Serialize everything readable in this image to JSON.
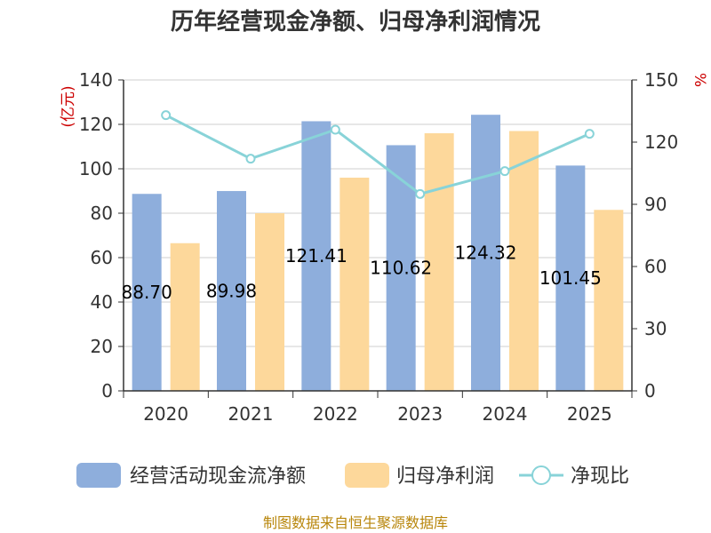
{
  "chart_data": {
    "type": "bar",
    "title": "历年经营现金净额、归母净利润情况",
    "categories": [
      "2020",
      "2021",
      "2022",
      "2023",
      "2024",
      "2025"
    ],
    "series": [
      {
        "name": "经营活动现金流净额",
        "axis": "left",
        "kind": "bar",
        "color": "#8eaedc",
        "values": [
          88.7,
          89.98,
          121.41,
          110.62,
          124.32,
          101.45
        ],
        "labels": [
          "88.70",
          "89.98",
          "121.41",
          "110.62",
          "124.32",
          "101.45"
        ]
      },
      {
        "name": "归母净利润",
        "axis": "left",
        "kind": "bar",
        "color": "#fdd89b",
        "values": [
          66.5,
          80.0,
          96.0,
          116.0,
          117.0,
          81.5
        ]
      },
      {
        "name": "净现比",
        "axis": "right",
        "kind": "line",
        "color": "#88d3d8",
        "values": [
          133,
          112,
          126,
          95,
          106,
          124
        ]
      }
    ],
    "left_axis": {
      "label": "(亿元)",
      "ylim": [
        0,
        140
      ],
      "ticks": [
        0,
        20,
        40,
        60,
        80,
        100,
        120,
        140
      ]
    },
    "right_axis": {
      "label": "%",
      "ylim": [
        0,
        150
      ],
      "ticks": [
        0,
        30,
        60,
        90,
        120,
        150
      ]
    },
    "grid": true,
    "legend_position": "bottom"
  },
  "source": "制图数据来自恒生聚源数据库"
}
